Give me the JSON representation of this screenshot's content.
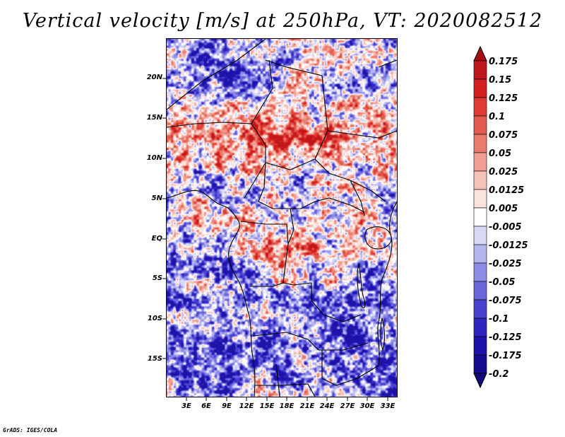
{
  "title": "Vertical velocity [m/s] at 250hPa, VT: 2020082512",
  "credit": "GrADS: IGES/COLA",
  "latitude_labels": [
    "20N",
    "15N",
    "10N",
    "5N",
    "EQ",
    "5S",
    "10S",
    "15S"
  ],
  "latitude_values": [
    20,
    15,
    10,
    5,
    0,
    -5,
    -10,
    -15
  ],
  "longitude_labels": [
    "3E",
    "6E",
    "9E",
    "12E",
    "15E",
    "18E",
    "21E",
    "24E",
    "27E",
    "30E",
    "33E"
  ],
  "longitude_values": [
    3,
    6,
    9,
    12,
    15,
    18,
    21,
    24,
    27,
    30,
    33
  ],
  "map_extent": {
    "lon_min": 0.0,
    "lon_max": 34.5,
    "lat_min": -20.0,
    "lat_max": 25.0
  },
  "colorbar": {
    "labels": [
      "0.175",
      "0.15",
      "0.125",
      "0.1",
      "0.075",
      "0.05",
      "0.025",
      "0.0125",
      "0.005",
      "-0.005",
      "-0.0125",
      "-0.025",
      "-0.05",
      "-0.075",
      "-0.1",
      "-0.125",
      "-0.175",
      "-0.2"
    ],
    "colors": [
      "#a50f15",
      "#c0171c",
      "#d32020",
      "#de3b34",
      "#e35a4e",
      "#ea7c6e",
      "#f09e91",
      "#f6c2b8",
      "#fbe2dc",
      "#ffffff",
      "#d8d9f6",
      "#b5b4ef",
      "#8f8ce6",
      "#6b66dc",
      "#4a42cf",
      "#2f24bf",
      "#1f12a8",
      "#180a8f",
      "#12067a"
    ]
  }
}
